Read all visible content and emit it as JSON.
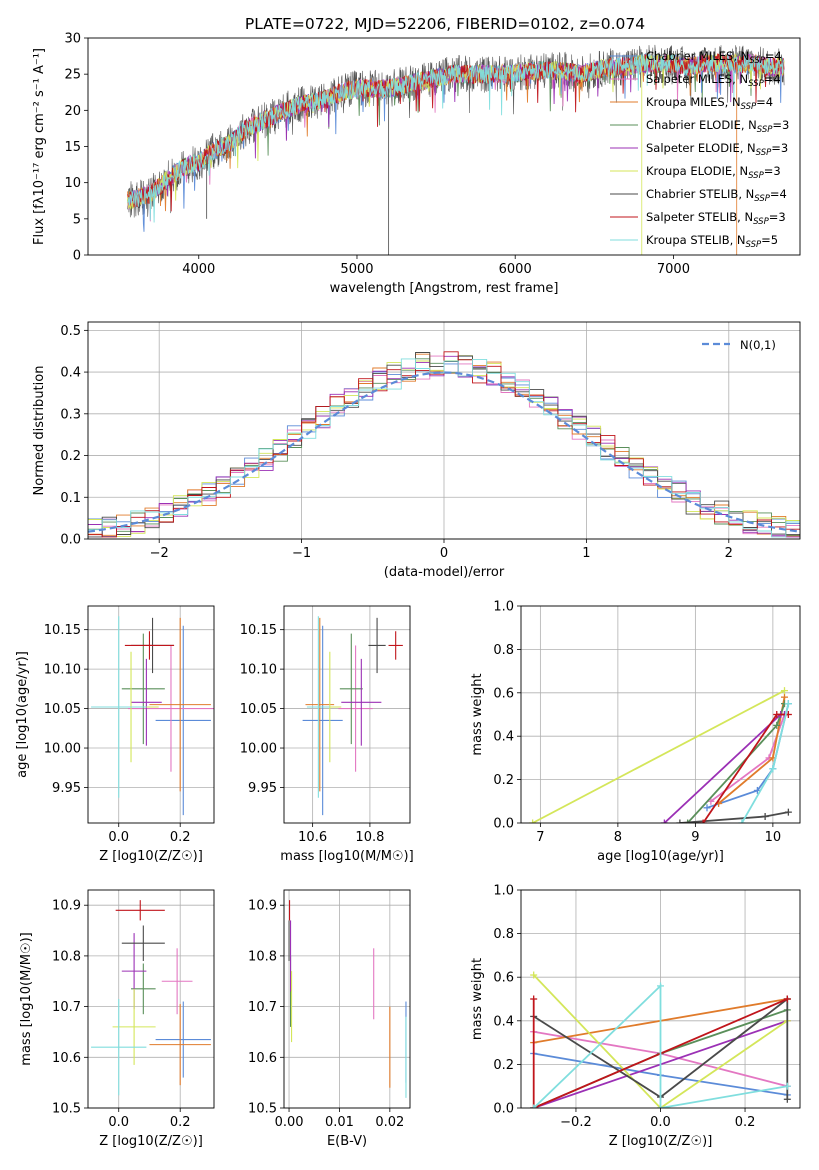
{
  "figure": {
    "title": "PLATE=0722, MJD=52206, FIBERID=0102, z=0.074"
  },
  "models": [
    {
      "name": "Chabrier MILES, N",
      "sub": "SSP",
      "eq": "=4",
      "color": "#5b8bd8"
    },
    {
      "name": "Salpeter MILES, N",
      "sub": "SSP",
      "eq": "=4",
      "color": "#e377c2"
    },
    {
      "name": "Kroupa MILES, N",
      "sub": "SSP",
      "eq": "=4",
      "color": "#e07b2b"
    },
    {
      "name": "Chabrier ELODIE, N",
      "sub": "SSP",
      "eq": "=3",
      "color": "#5a8f5a"
    },
    {
      "name": "Salpeter ELODIE, N",
      "sub": "SSP",
      "eq": "=3",
      "color": "#9b30b5"
    },
    {
      "name": "Kroupa ELODIE, N",
      "sub": "SSP",
      "eq": "=3",
      "color": "#d4e65a"
    },
    {
      "name": "Chabrier STELIB, N",
      "sub": "SSP",
      "eq": "=4",
      "color": "#4a4a4a"
    },
    {
      "name": "Salpeter STELIB, N",
      "sub": "SSP",
      "eq": "=3",
      "color": "#c0151b"
    },
    {
      "name": "Kroupa STELIB, N",
      "sub": "SSP",
      "eq": "=5",
      "color": "#80dede"
    }
  ],
  "chart_data": [
    {
      "id": "spectrum",
      "type": "line",
      "xlabel": "wavelength [Angstrom, rest frame]",
      "ylabel": "Flux [fλ10⁻¹⁷ erg cm⁻² s⁻¹ A⁻¹]",
      "xlim": [
        3300,
        7800
      ],
      "ylim": [
        0,
        30
      ],
      "xticks": [
        4000,
        5000,
        6000,
        7000,
        8000
      ],
      "yticks": [
        0,
        5,
        10,
        15,
        20,
        25,
        30
      ],
      "continuum_x": [
        3550,
        3700,
        3800,
        3900,
        3950,
        4000,
        4100,
        4200,
        4300,
        4400,
        4500,
        4600,
        4700,
        4800,
        4900,
        5000,
        5100,
        5200,
        5300,
        5400,
        5500,
        5600,
        5700,
        5800,
        5900,
        6000,
        6100,
        6200,
        6300,
        6400,
        6500,
        6600,
        6700,
        6800,
        6900,
        7000,
        7100,
        7200,
        7300,
        7400,
        7500,
        7600,
        7700
      ],
      "continuum_y": [
        7.5,
        8.5,
        10.5,
        12,
        12.5,
        12.8,
        14.5,
        15.5,
        17.5,
        18.5,
        19.5,
        20.5,
        21,
        21.5,
        22.5,
        23,
        23,
        23,
        23.5,
        24,
        24.5,
        25,
        25,
        25,
        25,
        25,
        25.5,
        25.5,
        25.5,
        25,
        25.5,
        26,
        26,
        26.5,
        26.5,
        26.5,
        26,
        26.5,
        26.5,
        26.5,
        26.5,
        26,
        26
      ],
      "legend": "upper right",
      "grid": false
    },
    {
      "id": "residuals",
      "type": "line",
      "xlabel": "(data-model)/error",
      "ylabel": "Normed distribution",
      "xlim": [
        -2.5,
        2.5
      ],
      "ylim": [
        0,
        0.52
      ],
      "xticks": [
        -2,
        -1,
        0,
        1,
        2
      ],
      "yticks": [
        0.0,
        0.1,
        0.2,
        0.3,
        0.4,
        0.5
      ],
      "reference_label": "N(0,1)",
      "legend": "upper right",
      "grid": true
    },
    {
      "id": "age_vs_Z",
      "type": "scatter",
      "ylabel": "age  [log10(age/yr)]",
      "xlabel": "Z [log10(Z/Z☉)]",
      "xlim": [
        -0.1,
        0.31
      ],
      "ylim": [
        9.905,
        10.18
      ],
      "xticks": [
        0.0,
        0.2
      ],
      "yticks": [
        9.95,
        10.0,
        10.05,
        10.1,
        10.15
      ],
      "points": [
        [
          0.21,
          10.035,
          0.09,
          0.12
        ],
        [
          0.17,
          10.05,
          0.14,
          0.08
        ],
        [
          0.2,
          10.055,
          0.1,
          0.11
        ],
        [
          0.08,
          10.075,
          0.07,
          0.07
        ],
        [
          0.09,
          10.058,
          0.05,
          0.055
        ],
        [
          0.04,
          10.052,
          0.09,
          0.07
        ],
        [
          0.11,
          10.13,
          0.07,
          0.035
        ],
        [
          0.1,
          10.13,
          0.08,
          0.018
        ],
        [
          0.0,
          10.052,
          0.09,
          0.115
        ]
      ]
    },
    {
      "id": "age_vs_mass",
      "type": "scatter",
      "xlabel": "mass [log10(M/M☉)]",
      "xlim": [
        10.5,
        10.94
      ],
      "ylim": [
        9.905,
        10.18
      ],
      "xticks": [
        10.6,
        10.8
      ],
      "yticks": [
        9.95,
        10.0,
        10.05,
        10.1,
        10.15
      ],
      "points": [
        [
          10.635,
          10.035,
          0.07,
          0.12
        ],
        [
          10.75,
          10.05,
          0.06,
          0.08
        ],
        [
          10.625,
          10.055,
          0.05,
          0.11
        ],
        [
          10.735,
          10.075,
          0.04,
          0.07
        ],
        [
          10.77,
          10.058,
          0.07,
          0.055
        ],
        [
          10.66,
          10.052,
          0.04,
          0.07
        ],
        [
          10.825,
          10.13,
          0.03,
          0.035
        ],
        [
          10.89,
          10.13,
          0.025,
          0.018
        ],
        [
          10.62,
          10.052,
          0.04,
          0.115
        ]
      ]
    },
    {
      "id": "weight_vs_age",
      "type": "line",
      "xlabel": "age  [log10(age/yr)]",
      "ylabel": "mass weight",
      "xlim": [
        6.75,
        10.35
      ],
      "ylim": [
        0,
        1
      ],
      "xticks": [
        7,
        8,
        9,
        10
      ],
      "yticks": [
        0.0,
        0.2,
        0.4,
        0.6,
        0.8,
        1.0
      ],
      "grid": true,
      "series": [
        {
          "x": [
            9.15,
            9.8,
            10.0,
            10.2
          ],
          "y": [
            0.07,
            0.15,
            0.25,
            0.55
          ]
        },
        {
          "x": [
            9.2,
            9.95,
            10.15
          ],
          "y": [
            0.1,
            0.3,
            0.5
          ]
        },
        {
          "x": [
            9.3,
            10.0,
            10.15
          ],
          "y": [
            0.09,
            0.3,
            0.58
          ]
        },
        {
          "x": [
            8.9,
            10.05,
            10.15
          ],
          "y": [
            0.0,
            0.45,
            0.55
          ]
        },
        {
          "x": [
            8.6,
            10.1,
            10.15
          ],
          "y": [
            0.0,
            0.5,
            0.5
          ]
        },
        {
          "x": [
            6.9,
            10.15
          ],
          "y": [
            0.0,
            0.61
          ]
        },
        {
          "x": [
            8.8,
            9.9,
            10.2
          ],
          "y": [
            0.0,
            0.03,
            0.05
          ]
        },
        {
          "x": [
            9.1,
            10.05,
            10.2
          ],
          "y": [
            0.0,
            0.5,
            0.5
          ]
        },
        {
          "x": [
            9.6,
            10.0,
            10.2
          ],
          "y": [
            0.0,
            0.25,
            0.55
          ]
        }
      ]
    },
    {
      "id": "mass_vs_Z",
      "type": "scatter",
      "xlabel": "Z [log10(Z/Z☉)]",
      "ylabel": "mass [log10(M/M☉)]",
      "xlim": [
        -0.1,
        0.31
      ],
      "ylim": [
        10.5,
        10.93
      ],
      "xticks": [
        0.0,
        0.2
      ],
      "yticks": [
        10.5,
        10.6,
        10.7,
        10.8,
        10.9
      ],
      "points": [
        [
          0.21,
          10.635,
          0.09,
          0.075
        ],
        [
          0.19,
          10.75,
          0.05,
          0.065
        ],
        [
          0.2,
          10.625,
          0.1,
          0.08
        ],
        [
          0.08,
          10.735,
          0.04,
          0.05
        ],
        [
          0.05,
          10.77,
          0.04,
          0.075
        ],
        [
          0.05,
          10.66,
          0.07,
          0.075
        ],
        [
          0.08,
          10.825,
          0.07,
          0.035
        ],
        [
          0.07,
          10.89,
          0.08,
          0.02
        ],
        [
          0.0,
          10.62,
          0.09,
          0.095
        ]
      ]
    },
    {
      "id": "mass_vs_EBV",
      "type": "scatter",
      "xlabel": "E(B-V)",
      "xlim": [
        -0.001,
        0.024
      ],
      "ylim": [
        10.5,
        10.93
      ],
      "xticks": [
        0.0,
        0.01,
        0.02
      ],
      "yticks": [
        10.5,
        10.6,
        10.7,
        10.8,
        10.9
      ],
      "points": [
        [
          0.0232,
          10.63,
          0,
          0.08
        ],
        [
          0.0168,
          10.745,
          0,
          0.07
        ],
        [
          0.02,
          10.62,
          0,
          0.08
        ],
        [
          0.0003,
          10.73,
          0,
          0.07
        ],
        [
          0.0003,
          10.8,
          0,
          0.07
        ],
        [
          0.0005,
          10.7,
          0,
          0.07
        ],
        [
          0.0,
          10.83,
          0,
          0.04
        ],
        [
          0.0001,
          10.89,
          0,
          0.02
        ],
        [
          0.0232,
          10.6,
          0,
          0.08
        ]
      ]
    },
    {
      "id": "weight_vs_Z",
      "type": "line",
      "xlabel": "Z [log10(Z/Z☉)]",
      "ylabel": "mass weight",
      "xlim": [
        -0.33,
        0.33
      ],
      "ylim": [
        0,
        1
      ],
      "xticks": [
        -0.2,
        0.0,
        0.2
      ],
      "yticks": [
        0.0,
        0.2,
        0.4,
        0.6,
        0.8,
        1.0
      ],
      "grid": true,
      "series": [
        {
          "x": [
            -0.3,
            0.0,
            0.3
          ],
          "y": [
            0.25,
            0.15,
            0.06
          ]
        },
        {
          "x": [
            -0.3,
            0.0,
            0.3
          ],
          "y": [
            0.35,
            0.25,
            0.1
          ]
        },
        {
          "x": [
            -0.3,
            0.3
          ],
          "y": [
            0.3,
            0.5
          ]
        },
        {
          "x": [
            -0.3,
            0.0,
            0.3
          ],
          "y": [
            0.0,
            0.25,
            0.45
          ]
        },
        {
          "x": [
            -0.3,
            0.3
          ],
          "y": [
            0.0,
            0.4
          ]
        },
        {
          "x": [
            -0.3,
            0.0,
            0.3
          ],
          "y": [
            0.61,
            0.0,
            0.4
          ]
        },
        {
          "x": [
            -0.3,
            0.0,
            0.3,
            0.3
          ],
          "y": [
            0.42,
            0.05,
            0.5,
            0.04
          ]
        },
        {
          "x": [
            -0.3,
            -0.3,
            0.3
          ],
          "y": [
            0.5,
            0.0,
            0.5
          ]
        },
        {
          "x": [
            -0.3,
            0.0,
            0.0,
            0.3
          ],
          "y": [
            0.0,
            0.56,
            0.0,
            0.1
          ]
        }
      ]
    }
  ]
}
